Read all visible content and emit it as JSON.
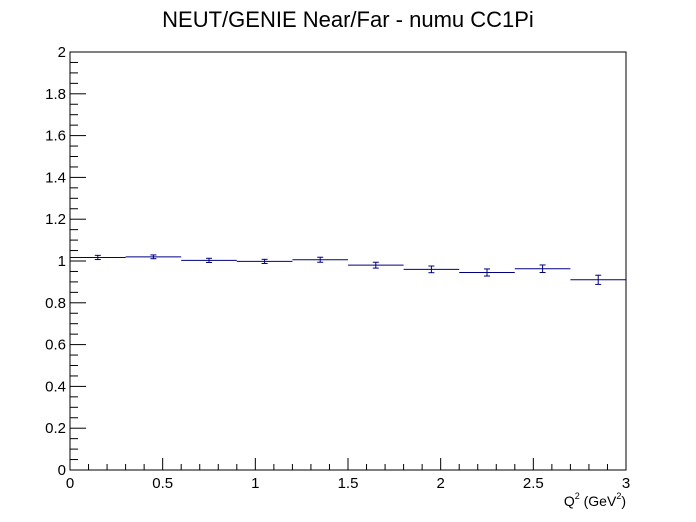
{
  "chart_data": {
    "type": "scatter",
    "title": "NEUT/GENIE Near/Far - numu CC1Pi",
    "xlabel": {
      "main": "Q",
      "sup": "2",
      "unit_open": " (GeV",
      "unit_sup": "2",
      "unit_close": ")"
    },
    "ylabel": "",
    "xlim": [
      0,
      3
    ],
    "ylim": [
      0,
      2
    ],
    "x_major_ticks": [
      0,
      0.5,
      1,
      1.5,
      2,
      2.5,
      3
    ],
    "x_tick_labels": [
      "0",
      "0.5",
      "1",
      "1.5",
      "2",
      "2.5",
      "3"
    ],
    "x_minor_step": 0.1,
    "y_major_ticks": [
      0,
      0.2,
      0.4,
      0.6,
      0.8,
      1,
      1.2,
      1.4,
      1.6,
      1.8,
      2
    ],
    "y_tick_labels": [
      "0",
      "0.2",
      "0.4",
      "0.6",
      "0.8",
      "1",
      "1.2",
      "1.4",
      "1.6",
      "1.8",
      "2"
    ],
    "y_minor_step": 0.05,
    "grid": false,
    "color": "#000080",
    "series": [
      {
        "bins": [
          {
            "x_low": 0.0,
            "x_high": 0.3,
            "y": 1.017,
            "err": 0.01
          },
          {
            "x_low": 0.3,
            "x_high": 0.6,
            "y": 1.02,
            "err": 0.009
          },
          {
            "x_low": 0.6,
            "x_high": 0.9,
            "y": 1.003,
            "err": 0.01
          },
          {
            "x_low": 0.9,
            "x_high": 1.2,
            "y": 0.998,
            "err": 0.01
          },
          {
            "x_low": 1.2,
            "x_high": 1.5,
            "y": 1.006,
            "err": 0.012
          },
          {
            "x_low": 1.5,
            "x_high": 1.8,
            "y": 0.98,
            "err": 0.014
          },
          {
            "x_low": 1.8,
            "x_high": 2.1,
            "y": 0.96,
            "err": 0.016
          },
          {
            "x_low": 2.1,
            "x_high": 2.4,
            "y": 0.945,
            "err": 0.017
          },
          {
            "x_low": 2.4,
            "x_high": 2.7,
            "y": 0.963,
            "err": 0.018
          },
          {
            "x_low": 2.7,
            "x_high": 3.0,
            "y": 0.91,
            "err": 0.022
          }
        ]
      }
    ]
  }
}
